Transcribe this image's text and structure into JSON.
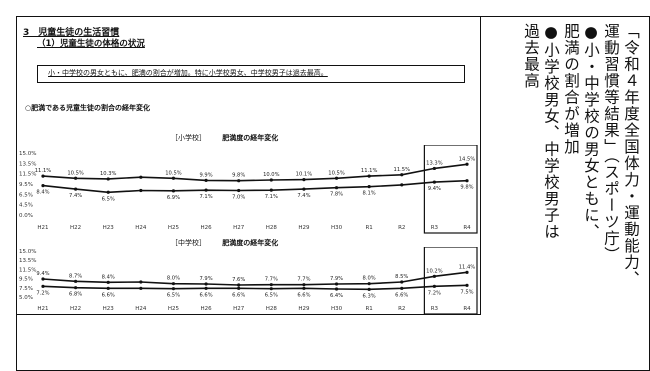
{
  "document": {
    "section_title": "3　児童生徒の生活習慣",
    "subsection_title": "（1）児童生徒の体格の状況",
    "boxed_summary": "小・中学校の男女ともに、肥満の割合が増加。特に小学校男女、中学校男子は過去最高。",
    "o_label": "○肥満である児童生徒の割合の経年変化"
  },
  "side_note": {
    "line1": "「令和４年度全国体力・運動能力、",
    "line2": "運動習慣等結果」（スポーツ庁）",
    "line3": "●小・中学校の男女ともに、",
    "line4": "肥満の割合が増加",
    "line5": "●小学校男女、中学校男子は",
    "line6": "過去最高"
  },
  "chart_data": [
    {
      "type": "line",
      "title": "肥満度の経年変化",
      "school_label": "［小学校］",
      "x": [
        "H21",
        "H22",
        "H23",
        "H24",
        "H25",
        "H26",
        "H27",
        "H28",
        "H29",
        "H30",
        "R1",
        "R2",
        "R3",
        "R4"
      ],
      "y_ticks": [
        "15.0%",
        "13.5%",
        "11.5%",
        "9.5%",
        "6.5%",
        "4.5%",
        "0.0%"
      ],
      "ylim": [
        0,
        16
      ],
      "series": [
        {
          "values": [
            11.1,
            10.5,
            10.3,
            10.8,
            10.5,
            9.9,
            9.8,
            10.0,
            10.1,
            10.5,
            11.1,
            11.5,
            13.3,
            14.5
          ],
          "value_labels": [
            "11.1%",
            "10.5%",
            "10.3%",
            "",
            "10.5%",
            "9.9%",
            "9.8%",
            "10.0%",
            "10.1%",
            "10.5%",
            "11.1%",
            "11.5%",
            "13.3%",
            "14.5%"
          ]
        },
        {
          "values": [
            8.4,
            7.4,
            6.5,
            7.0,
            6.9,
            7.1,
            7.0,
            7.1,
            7.4,
            7.8,
            8.1,
            8.6,
            9.4,
            9.8
          ],
          "value_labels": [
            "8.4%",
            "7.4%",
            "6.5%",
            "",
            "6.9%",
            "7.1%",
            "7.0%",
            "7.1%",
            "7.4%",
            "7.8%",
            "8.1%",
            "",
            "9.4%",
            "9.8%"
          ]
        }
      ],
      "highlight": [
        "R3",
        "R4"
      ]
    },
    {
      "type": "line",
      "title": "肥満度の経年変化",
      "school_label": "［中学校］",
      "x": [
        "H21",
        "H22",
        "H23",
        "H24",
        "H25",
        "H26",
        "H27",
        "H28",
        "H29",
        "H30",
        "R1",
        "R2",
        "R3",
        "R4"
      ],
      "y_ticks": [
        "15.0%",
        "13.5%",
        "11.5%",
        "9.5%",
        "7.5%",
        "5.0%"
      ],
      "ylim": [
        4,
        16
      ],
      "series": [
        {
          "values": [
            9.4,
            8.7,
            8.4,
            8.5,
            8.0,
            7.9,
            7.6,
            7.7,
            7.7,
            7.9,
            8.0,
            8.5,
            10.2,
            11.4
          ],
          "value_labels": [
            "9.4%",
            "8.7%",
            "8.4%",
            "",
            "8.0%",
            "7.9%",
            "7.6%",
            "7.7%",
            "7.7%",
            "7.9%",
            "8.0%",
            "8.5%",
            "10.2%",
            "11.4%"
          ]
        },
        {
          "values": [
            7.2,
            6.8,
            6.6,
            6.6,
            6.5,
            6.6,
            6.6,
            6.5,
            6.6,
            6.4,
            6.3,
            6.6,
            7.2,
            7.5
          ],
          "value_labels": [
            "7.2%",
            "6.8%",
            "6.6%",
            "",
            "6.5%",
            "6.6%",
            "6.6%",
            "6.5%",
            "6.6%",
            "6.4%",
            "6.3%",
            "6.6%",
            "7.2%",
            "7.5%"
          ]
        }
      ],
      "highlight": [
        "R3",
        "R4"
      ]
    }
  ]
}
